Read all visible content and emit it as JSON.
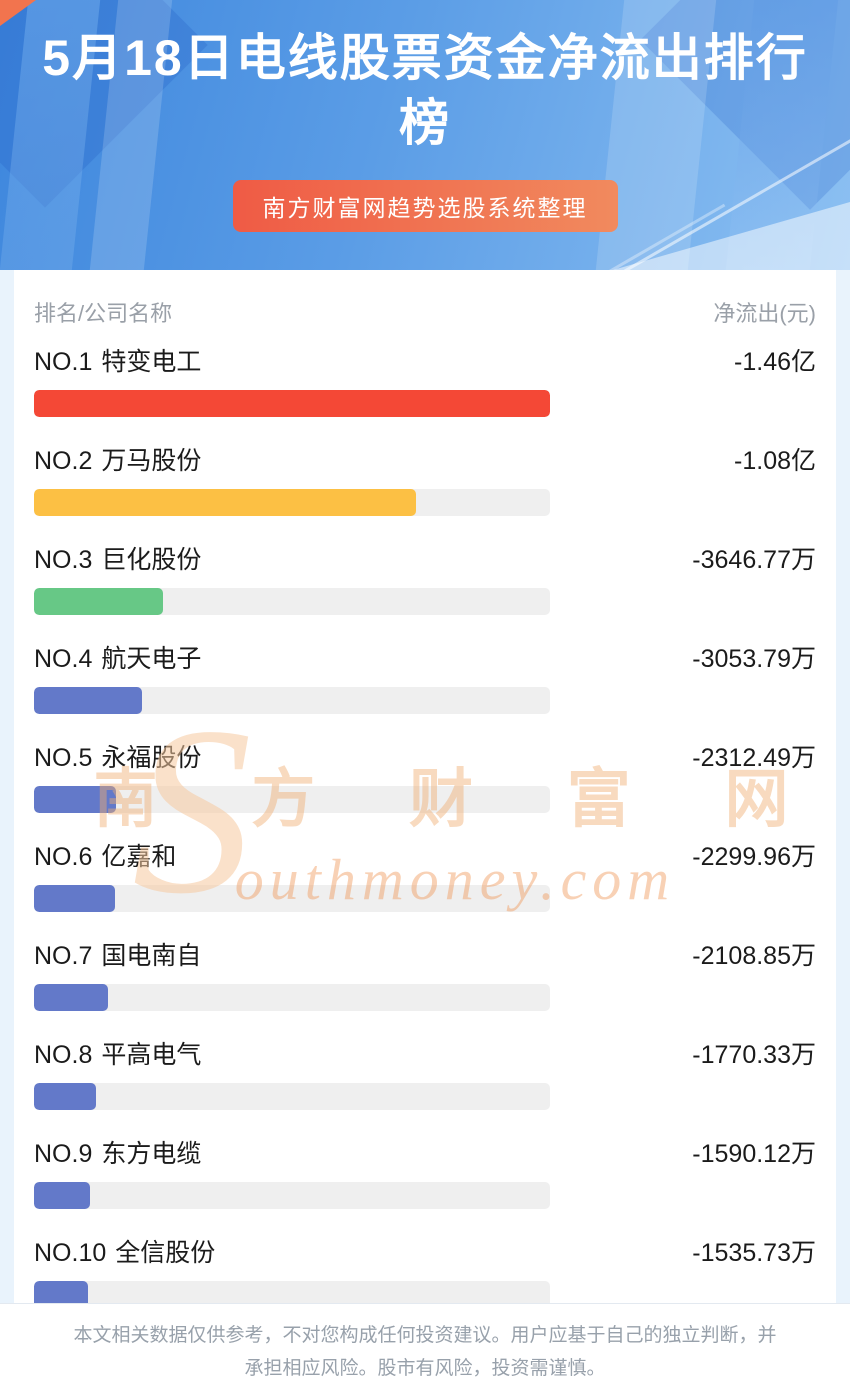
{
  "header": {
    "title": "5月18日电线股票资金净流出排行榜",
    "subtitle": "南方财富网趋势选股系统整理"
  },
  "table": {
    "col_left": "排名/公司名称",
    "col_right": "净流出(元)"
  },
  "rows": [
    {
      "rank": "NO.1",
      "name": "特变电工",
      "value": "-1.46亿",
      "bar_color": "#f44836",
      "bar_pct": 100
    },
    {
      "rank": "NO.2",
      "name": "万马股份",
      "value": "-1.08亿",
      "bar_color": "#fcc044",
      "bar_pct": 74
    },
    {
      "rank": "NO.3",
      "name": "巨化股份",
      "value": "-3646.77万",
      "bar_color": "#67c886",
      "bar_pct": 25
    },
    {
      "rank": "NO.4",
      "name": "航天电子",
      "value": "-3053.79万",
      "bar_color": "#6379c9",
      "bar_pct": 20.9
    },
    {
      "rank": "NO.5",
      "name": "永福股份",
      "value": "-2312.49万",
      "bar_color": "#6379c9",
      "bar_pct": 15.8
    },
    {
      "rank": "NO.6",
      "name": "亿嘉和",
      "value": "-2299.96万",
      "bar_color": "#6379c9",
      "bar_pct": 15.7
    },
    {
      "rank": "NO.7",
      "name": "国电南自",
      "value": "-2108.85万",
      "bar_color": "#6379c9",
      "bar_pct": 14.4
    },
    {
      "rank": "NO.8",
      "name": "平高电气",
      "value": "-1770.33万",
      "bar_color": "#6379c9",
      "bar_pct": 12.1
    },
    {
      "rank": "NO.9",
      "name": "东方电缆",
      "value": "-1590.12万",
      "bar_color": "#6379c9",
      "bar_pct": 10.9
    },
    {
      "rank": "NO.10",
      "name": "全信股份",
      "value": "-1535.73万",
      "bar_color": "#6379c9",
      "bar_pct": 10.5
    }
  ],
  "chart_data": {
    "type": "bar",
    "title": "5月18日电线股票资金净流出排行榜",
    "subtitle": "南方财富网趋势选股系统整理",
    "categories": [
      "特变电工",
      "万马股份",
      "巨化股份",
      "航天电子",
      "永福股份",
      "亿嘉和",
      "国电南自",
      "平高电气",
      "东方电缆",
      "全信股份"
    ],
    "values": [
      -14600,
      -10800,
      -3646.77,
      -3053.79,
      -2312.49,
      -2299.96,
      -2108.85,
      -1770.33,
      -1590.12,
      -1535.73
    ],
    "value_labels": [
      "-1.46亿",
      "-1.08亿",
      "-3646.77万",
      "-3053.79万",
      "-2312.49万",
      "-2299.96万",
      "-2108.85万",
      "-1770.33万",
      "-1590.12万",
      "-1535.73万"
    ],
    "unit": "万元",
    "xlabel": "净流出(元)",
    "ylabel": "排名/公司名称",
    "orientation": "horizontal",
    "grid": false,
    "legend": false
  },
  "watermark": {
    "line1": "南 方 财 富 网",
    "big_s": "S",
    "line2": "outhmoney.com"
  },
  "footer": {
    "disclaimer": "本文相关数据仅供参考，不对您构成任何投资建议。用户应基于自己的独立判断，并承担相应风险。股市有风险，投资需谨慎。"
  }
}
